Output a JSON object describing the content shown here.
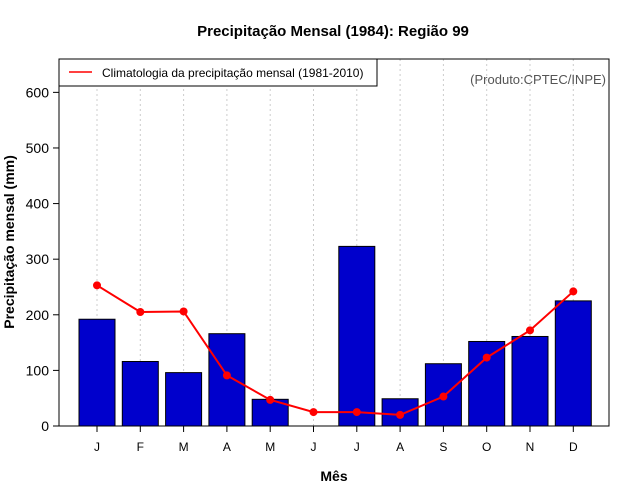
{
  "chart_data": {
    "type": "bar",
    "title": "Precipitação Mensal (1984): Região 99",
    "xlabel": "Mês",
    "ylabel": "Precipitação mensal (mm)",
    "categories": [
      "J",
      "F",
      "M",
      "A",
      "M",
      "J",
      "J",
      "A",
      "S",
      "O",
      "N",
      "D"
    ],
    "ylim": [
      0,
      660
    ],
    "yticks": [
      0,
      100,
      200,
      300,
      400,
      500,
      600
    ],
    "series": [
      {
        "name": "Precipitação mensal (1984)",
        "type": "bar",
        "color": "#0000CC",
        "values": [
          192,
          116,
          96,
          166,
          48,
          0,
          323,
          49,
          112,
          152,
          161,
          225
        ]
      },
      {
        "name": "Climatologia da precipitação mensal (1981-2010)",
        "type": "line",
        "color": "#FF0000",
        "values": [
          253,
          205,
          206,
          91,
          47,
          25,
          25,
          20,
          53,
          123,
          172,
          242
        ]
      }
    ],
    "legend": {
      "position": "top-left",
      "entries": [
        "Climatologia da precipitação mensal (1981-2010)"
      ]
    },
    "annotation": "(Produto:CPTEC/INPE)",
    "grid": "vertical dotted"
  }
}
